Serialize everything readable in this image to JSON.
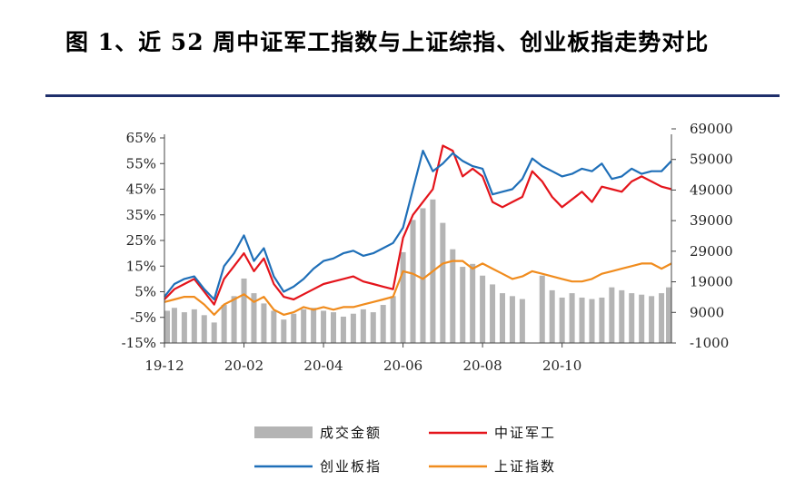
{
  "page": {
    "title": "图 1、近 52 周中证军工指数与上证综指、创业板指走势对比"
  },
  "chart_data": {
    "type": "line",
    "title": "图 1、近 52 周中证军工指数与上证综指、创业板指走势对比",
    "x_ticks": [
      "19-12",
      "20-02",
      "20-04",
      "20-06",
      "20-08",
      "20-10"
    ],
    "x_tick_index": [
      0,
      8,
      16,
      24,
      32,
      40
    ],
    "y_left": {
      "ticks": [
        "65%",
        "55%",
        "45%",
        "35%",
        "25%",
        "15%",
        "5%",
        "-5%",
        "-15%"
      ],
      "range": [
        -15,
        65
      ],
      "unit": "%"
    },
    "y_right": {
      "ticks": [
        "69000",
        "59000",
        "49000",
        "39000",
        "29000",
        "19000",
        "9000",
        "-1000"
      ],
      "range": [
        -1000,
        69000
      ]
    },
    "legend": [
      "成交金额",
      "中证军工",
      "创业板指",
      "上证指数"
    ],
    "series": [
      {
        "name": "成交金额",
        "type": "bar",
        "axis": "right",
        "color": "#b4b4b4",
        "values": [
          10000,
          11000,
          9500,
          10500,
          8500,
          6000,
          12000,
          15000,
          21000,
          16000,
          12500,
          10000,
          7000,
          9000,
          10500,
          11000,
          10000,
          9500,
          8000,
          9000,
          10500,
          9500,
          12000,
          15000,
          30000,
          41000,
          45000,
          48000,
          40000,
          31000,
          25000,
          26000,
          22000,
          19000,
          16000,
          15000,
          14000,
          0,
          22000,
          17000,
          14500,
          16000,
          14500,
          14000,
          14500,
          18000,
          17000,
          16000,
          15500,
          15000,
          16000,
          18000
        ]
      },
      {
        "name": "中证军工",
        "type": "line",
        "axis": "left",
        "color": "#e4141b",
        "values": [
          2,
          6,
          8,
          10,
          5,
          0,
          10,
          15,
          20,
          13,
          18,
          8,
          3,
          2,
          4,
          6,
          8,
          9,
          10,
          11,
          9,
          8,
          7,
          6,
          26,
          35,
          40,
          45,
          62,
          60,
          50,
          53,
          50,
          40,
          38,
          40,
          42,
          52,
          48,
          42,
          38,
          41,
          44,
          40,
          46,
          45,
          44,
          48,
          50,
          48,
          46,
          45
        ]
      },
      {
        "name": "创业板指",
        "type": "line",
        "axis": "left",
        "color": "#1f6fb8",
        "values": [
          3,
          8,
          10,
          11,
          6,
          2,
          15,
          20,
          27,
          17,
          22,
          11,
          5,
          7,
          10,
          14,
          17,
          18,
          20,
          21,
          19,
          20,
          22,
          24,
          30,
          45,
          60,
          52,
          55,
          59,
          56,
          54,
          53,
          43,
          44,
          45,
          49,
          57,
          54,
          52,
          50,
          51,
          53,
          52,
          55,
          49,
          50,
          53,
          51,
          52,
          52,
          56
        ]
      },
      {
        "name": "上证指数",
        "type": "line",
        "axis": "left",
        "color": "#f08c1e",
        "values": [
          1,
          2,
          3,
          3,
          0,
          -4,
          0,
          2,
          4,
          1,
          3,
          -2,
          -4,
          -3,
          -1,
          -2,
          -1,
          -2,
          -1,
          -1,
          0,
          1,
          2,
          3,
          13,
          12,
          10,
          13,
          16,
          17,
          17,
          14,
          16,
          14,
          12,
          10,
          11,
          13,
          12,
          11,
          10,
          9,
          9,
          10,
          12,
          13,
          14,
          15,
          16,
          16,
          14,
          16
        ]
      }
    ]
  }
}
